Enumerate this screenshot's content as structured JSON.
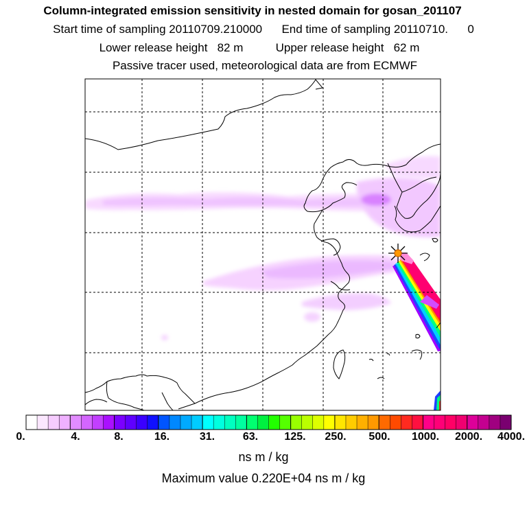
{
  "header": {
    "title": "Column-integrated emission sensitivity in nested domain for gosan_201107",
    "sampling_line": "Start time of sampling 20110709.210000      End time of sampling 20110710.      0",
    "release_line": "Lower release height   82 m          Upper release height   62 m",
    "tracer_line": "Passive tracer used, meteorological data are from ECMWF"
  },
  "chart_data": {
    "type": "heatmap",
    "title": "Column-integrated emission sensitivity in nested domain for gosan_201107",
    "grid": "dashed",
    "colorbar": {
      "tick_labels": [
        "0.",
        "4.",
        "8.",
        "16.",
        "31.",
        "63.",
        "125.",
        "250.",
        "500.",
        "1000.",
        "2000.",
        "4000."
      ],
      "unit": "ns m / kg",
      "colors": [
        [
          "#ffffff",
          "#fbe7ff",
          "#f6ccff",
          "#efb1ff"
        ],
        [
          "#e28cff",
          "#d466ff",
          "#c23fff",
          "#aa10ff"
        ],
        [
          "#7b00ff",
          "#5f00ff",
          "#3a00ff",
          "#1010ff"
        ],
        [
          "#0055ff",
          "#0088ff",
          "#00aaff",
          "#00ccff"
        ],
        [
          "#00ffff",
          "#00ffe0",
          "#00ffc0",
          "#00ffa0"
        ],
        [
          "#00ff70",
          "#00f040",
          "#22ff00",
          "#55ff00"
        ],
        [
          "#99ff00",
          "#bbff00",
          "#ddff00",
          "#ffff00"
        ],
        [
          "#ffe600",
          "#ffcc00",
          "#ffb000",
          "#ff9900"
        ],
        [
          "#ff6a00",
          "#ff4a00",
          "#ff2a20",
          "#ff1040"
        ],
        [
          "#ff0088",
          "#ff0077",
          "#ff0066",
          "#f00070"
        ],
        [
          "#dd0099",
          "#c40090",
          "#a00080",
          "#7a0070"
        ]
      ]
    },
    "maximum_value": "0.220E+04",
    "maximum_label": "Maximum value  0.220E+04 ns m / kg",
    "receptor": "gosan"
  }
}
